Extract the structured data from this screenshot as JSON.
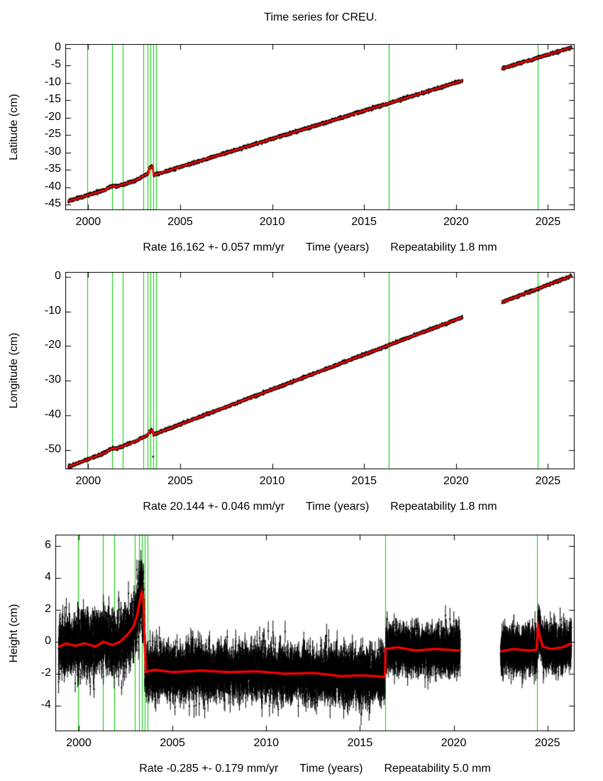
{
  "title": "Time series for CREU.",
  "colors": {
    "background": "#ffffff",
    "data": "#000000",
    "model": "#ff0000",
    "event": "#00cc00",
    "axis": "#000000"
  },
  "chart_data": [
    {
      "type": "scatter",
      "name": "latitude",
      "ylabel": "Latitude (cm)",
      "xlabel": "Time (years)",
      "caption_rate": "Rate 16.162 +- 0.057 mm/yr",
      "caption_repeatability": "Repeatability 1.8 mm",
      "xlim": [
        1998.75,
        2026.45
      ],
      "ylim": [
        -46.6,
        1.2
      ],
      "xticks": [
        2000,
        2005,
        2010,
        2015,
        2020,
        2025
      ],
      "yticks": [
        0,
        -5,
        -10,
        -15,
        -20,
        -25,
        -30,
        -35,
        -40,
        -45
      ],
      "t_range": [
        1998.92,
        2026.28
      ],
      "sample_step_years": 0.004,
      "gaps": [
        [
          2020.35,
          2022.5
        ]
      ],
      "events": [
        1999.95,
        2001.28,
        2001.88,
        2002.98,
        2003.22,
        2003.38,
        2003.52,
        2003.68,
        2016.35,
        2024.45
      ],
      "trend": {
        "rate_cm_per_yr": 1.6162,
        "ref_year": 2026.2,
        "ref_value": 0.1
      },
      "shape": [
        [
          1998.92,
          0
        ],
        [
          2000.95,
          0
        ],
        [
          2001.15,
          0.45
        ],
        [
          2001.4,
          0.45
        ],
        [
          2001.5,
          0
        ],
        [
          2002.55,
          0
        ],
        [
          2003.28,
          1.0
        ],
        [
          2003.32,
          2.5
        ],
        [
          2003.5,
          2.5
        ],
        [
          2003.56,
          0
        ],
        [
          2026.28,
          0
        ]
      ],
      "noise_sd": 0.2,
      "error_bar": 0.28,
      "outliers": [],
      "model_line_width": 2.6,
      "seed": 11
    },
    {
      "type": "scatter",
      "name": "longitude",
      "ylabel": "Longitude (cm)",
      "xlabel": "Time (years)",
      "caption_rate": "Rate 20.144 +- 0.046 mm/yr",
      "caption_repeatability": "Repeatability 1.8 mm",
      "xlim": [
        1998.75,
        2026.45
      ],
      "ylim": [
        -55.6,
        1.4
      ],
      "xticks": [
        2000,
        2005,
        2010,
        2015,
        2020,
        2025
      ],
      "yticks": [
        0,
        -10,
        -20,
        -30,
        -40,
        -50
      ],
      "t_range": [
        1998.92,
        2026.28
      ],
      "sample_step_years": 0.004,
      "gaps": [
        [
          2020.35,
          2022.5
        ]
      ],
      "events": [
        1999.95,
        2001.28,
        2001.88,
        2002.98,
        2003.22,
        2003.38,
        2003.52,
        2003.68,
        2016.35,
        2024.45
      ],
      "trend": {
        "rate_cm_per_yr": 2.0144,
        "ref_year": 2026.2,
        "ref_value": 0.1
      },
      "shape": [
        [
          1998.92,
          0
        ],
        [
          2000.95,
          0
        ],
        [
          2001.15,
          0.4
        ],
        [
          2001.4,
          0.4
        ],
        [
          2001.5,
          0
        ],
        [
          2002.6,
          0
        ],
        [
          2003.26,
          0.5
        ],
        [
          2003.32,
          1.3
        ],
        [
          2003.48,
          1.3
        ],
        [
          2003.54,
          0
        ],
        [
          2026.28,
          0
        ]
      ],
      "noise_sd": 0.2,
      "error_bar": 0.28,
      "outliers": [
        {
          "t": 2003.52,
          "dy": -6.8
        }
      ],
      "model_line_width": 2.6,
      "seed": 22
    },
    {
      "type": "scatter",
      "name": "height",
      "ylabel": "Height (cm)",
      "xlabel": "Time (years)",
      "caption_rate": "Rate -0.285 +- 0.179 mm/yr",
      "caption_repeatability": "Repeatability 5.0 mm",
      "xlim": [
        1998.75,
        2026.45
      ],
      "ylim": [
        -5.6,
        6.7
      ],
      "xticks": [
        2000,
        2005,
        2010,
        2015,
        2020,
        2025
      ],
      "yticks": [
        6,
        4,
        2,
        0,
        -2,
        -4
      ],
      "t_range": [
        1998.92,
        2026.28
      ],
      "sample_step_years": 0.004,
      "gaps": [
        [
          2020.35,
          2022.5
        ]
      ],
      "events": [
        1999.95,
        2001.28,
        2001.88,
        2002.98,
        2003.22,
        2003.38,
        2003.52,
        2003.68,
        2016.35,
        2024.45
      ],
      "trend": null,
      "shape": [
        [
          1998.92,
          -0.35
        ],
        [
          1999.3,
          -0.1
        ],
        [
          1999.8,
          -0.25
        ],
        [
          2000.3,
          -0.1
        ],
        [
          2000.9,
          -0.3
        ],
        [
          2001.3,
          0.0
        ],
        [
          2001.8,
          -0.2
        ],
        [
          2002.2,
          0.0
        ],
        [
          2002.6,
          0.45
        ],
        [
          2002.9,
          0.9
        ],
        [
          2003.1,
          1.6
        ],
        [
          2003.25,
          2.5
        ],
        [
          2003.35,
          3.1
        ],
        [
          2003.44,
          2.8
        ],
        [
          2003.5,
          0.5
        ],
        [
          2003.58,
          -1.9
        ],
        [
          2004.0,
          -1.75
        ],
        [
          2005.0,
          -1.9
        ],
        [
          2006.5,
          -1.8
        ],
        [
          2008.0,
          -1.9
        ],
        [
          2009.5,
          -1.85
        ],
        [
          2011.0,
          -2.0
        ],
        [
          2012.5,
          -1.95
        ],
        [
          2014.0,
          -2.15
        ],
        [
          2015.2,
          -2.1
        ],
        [
          2016.33,
          -2.2
        ],
        [
          2016.37,
          -0.45
        ],
        [
          2017.0,
          -0.35
        ],
        [
          2018.0,
          -0.55
        ],
        [
          2019.0,
          -0.45
        ],
        [
          2020.35,
          -0.55
        ],
        [
          2022.5,
          -0.6
        ],
        [
          2023.2,
          -0.45
        ],
        [
          2024.0,
          -0.55
        ],
        [
          2024.42,
          -0.5
        ],
        [
          2024.5,
          0.95
        ],
        [
          2024.6,
          0.3
        ],
        [
          2024.75,
          -0.3
        ],
        [
          2025.2,
          -0.45
        ],
        [
          2025.8,
          -0.35
        ],
        [
          2026.28,
          -0.1
        ]
      ],
      "noise_sd": [
        [
          1998.92,
          0.8
        ],
        [
          2002.8,
          0.9
        ],
        [
          2003.2,
          1.1
        ],
        [
          2003.45,
          1.2
        ],
        [
          2003.6,
          0.75
        ],
        [
          2016.3,
          0.72
        ],
        [
          2016.4,
          0.62
        ],
        [
          2020.3,
          0.62
        ],
        [
          2022.5,
          0.6
        ],
        [
          2026.28,
          0.6
        ]
      ],
      "error_bar": 0.6,
      "outliers": [],
      "model_line_width": 3.2,
      "seed": 33
    }
  ]
}
